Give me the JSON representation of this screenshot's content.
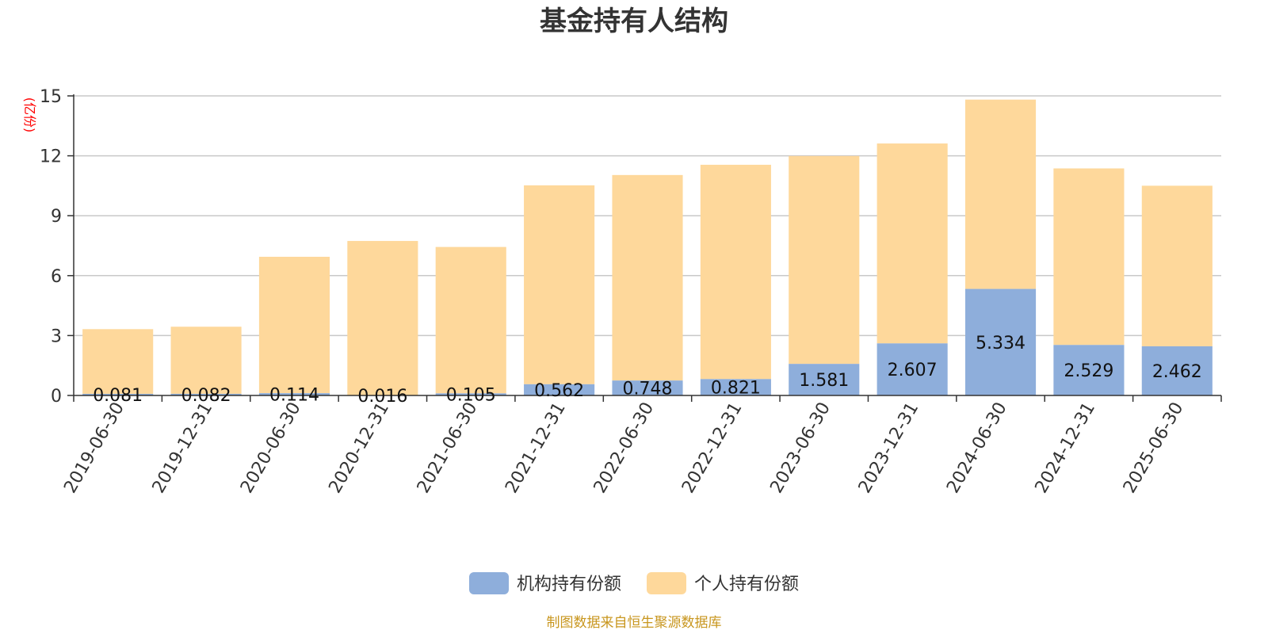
{
  "chart_data": {
    "type": "bar",
    "stacked": true,
    "title": "基金持有人结构",
    "ylabel": "(亿份)",
    "ylim": [
      0,
      15
    ],
    "yticks": [
      0,
      3,
      6,
      9,
      12,
      15
    ],
    "grid": true,
    "legend_position": "bottom-center",
    "categories": [
      "2019-06-30",
      "2019-12-31",
      "2020-06-30",
      "2020-12-31",
      "2021-06-30",
      "2021-12-31",
      "2022-06-30",
      "2022-12-31",
      "2023-06-30",
      "2023-12-31",
      "2024-06-30",
      "2024-12-31",
      "2025-06-30"
    ],
    "series": [
      {
        "name": "机构持有份额",
        "color": "#8eaedb",
        "values": [
          0.081,
          0.082,
          0.114,
          0.016,
          0.105,
          0.562,
          0.748,
          0.821,
          1.581,
          2.607,
          5.334,
          2.529,
          2.462
        ],
        "labels": [
          "0.081",
          "0.082",
          "0.114",
          "0.016",
          "0.105",
          "0.562",
          "0.748",
          "0.821",
          "1.581",
          "2.607",
          "5.334",
          "2.529",
          "2.462"
        ]
      },
      {
        "name": "个人持有份额",
        "color": "#fed89b",
        "values": [
          3.24,
          3.36,
          6.83,
          7.72,
          7.33,
          9.96,
          10.29,
          10.73,
          10.41,
          10.01,
          9.48,
          8.84,
          8.04
        ]
      }
    ]
  },
  "source_text": "制图数据来自恒生聚源数据库",
  "colors": {
    "axis_label": "#ff0000",
    "source": "#c8961e",
    "grid": "#c8c8c8"
  }
}
